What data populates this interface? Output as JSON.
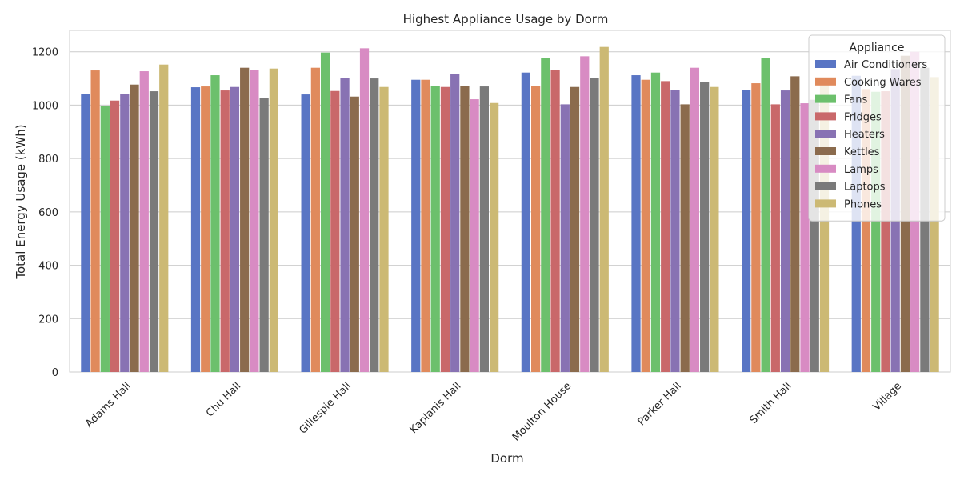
{
  "chart_data": {
    "type": "bar",
    "title": "Highest Appliance Usage by Dorm",
    "xlabel": "Dorm",
    "ylabel": "Total Energy Usage (kWh)",
    "ylim": [
      0,
      1280
    ],
    "yticks": [
      0,
      200,
      400,
      600,
      800,
      1000,
      1200
    ],
    "grid": true,
    "legend": {
      "title": "Appliance",
      "position": "top-right"
    },
    "categories": [
      "Adams Hall",
      "Chu Hall",
      "Gillespie Hall",
      "Kaplanis Hall",
      "Moulton House",
      "Parker Hall",
      "Smith Hall",
      "Village"
    ],
    "series": [
      {
        "name": "Air Conditioners",
        "color": "#5975c4",
        "values": [
          1043,
          1067,
          1040,
          1095,
          1122,
          1112,
          1058,
          1110
        ]
      },
      {
        "name": "Cooking Wares",
        "color": "#e08a5c",
        "values": [
          1130,
          1070,
          1140,
          1095,
          1073,
          1095,
          1082,
          1060
        ]
      },
      {
        "name": "Fans",
        "color": "#6cc06c",
        "values": [
          997,
          1112,
          1197,
          1072,
          1178,
          1122,
          1178,
          1050
        ]
      },
      {
        "name": "Fridges",
        "color": "#c9686a",
        "values": [
          1017,
          1055,
          1053,
          1068,
          1133,
          1090,
          1003,
          1052
        ]
      },
      {
        "name": "Heaters",
        "color": "#8872b3",
        "values": [
          1043,
          1068,
          1103,
          1118,
          1003,
          1058,
          1055,
          1135
        ]
      },
      {
        "name": "Kettles",
        "color": "#8b6b4d",
        "values": [
          1077,
          1140,
          1032,
          1073,
          1068,
          1003,
          1108,
          1185
        ]
      },
      {
        "name": "Lamps",
        "color": "#d88bc3",
        "values": [
          1127,
          1133,
          1213,
          1022,
          1183,
          1140,
          1007,
          1200
        ]
      },
      {
        "name": "Laptops",
        "color": "#7a7a7a",
        "values": [
          1052,
          1028,
          1100,
          1070,
          1103,
          1088,
          1020,
          1140
        ]
      },
      {
        "name": "Phones",
        "color": "#ccb974",
        "values": [
          1152,
          1137,
          1068,
          1008,
          1218,
          1068,
          1095,
          1105
        ]
      }
    ]
  }
}
